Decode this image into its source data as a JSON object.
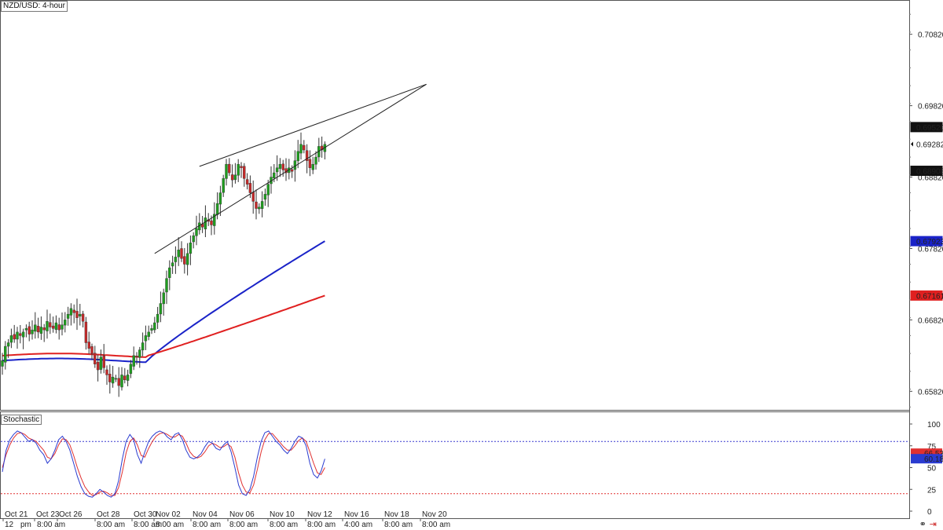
{
  "title": "NZD/USD: 4-hour",
  "stoch_label": "Stochastic",
  "colors": {
    "bull": "#1e9e1e",
    "bear": "#c62828",
    "ma_fast": "#1a23c8",
    "ma_slow": "#e02020",
    "stoch_k": "#2a3bd0",
    "stoch_d": "#e03030",
    "level_hi": "#3a3ad0",
    "level_lo": "#e03030"
  },
  "chart_data": {
    "type": "candlestick",
    "symbol": "NZD/USD",
    "timeframe": "4-hour",
    "price_axis": {
      "ticks": [
        "0.70820",
        "0.69820",
        "0.68820",
        "0.67820",
        "0.66820",
        "0.65820"
      ],
      "range": [
        0.6556,
        0.713
      ]
    },
    "price_tags": [
      {
        "value": "0.69520",
        "style": "dark"
      },
      {
        "value": "0.69282",
        "style": "current"
      },
      {
        "value": "0.68908",
        "style": "dark"
      },
      {
        "value": "0.67923",
        "style": "blue"
      },
      {
        "value": "0.67161",
        "style": "red"
      }
    ],
    "time_axis": {
      "top_row": [
        "Oct 21",
        "Oct 23",
        "Oct 26",
        "Oct 28",
        "Oct 30",
        "Nov 02",
        "Nov 04",
        "Nov 06",
        "Nov 10",
        "Nov 12",
        "Nov 16",
        "Nov 18",
        "Nov 20"
      ],
      "bottom_row": [
        "12",
        "pm",
        "8:00 am",
        "8:00 am",
        "8:00 am",
        "8:00 am",
        "8:00 am",
        "8:00 am",
        "8:00 am",
        "8:00 am",
        "4:00 am",
        "8:00 am",
        "8:00 am"
      ]
    },
    "closes": [
      0.6625,
      0.6645,
      0.665,
      0.666,
      0.6655,
      0.6665,
      0.666,
      0.6665,
      0.667,
      0.6662,
      0.6668,
      0.6675,
      0.6665,
      0.6672,
      0.6668,
      0.668,
      0.6672,
      0.667,
      0.6678,
      0.6668,
      0.6675,
      0.6682,
      0.669,
      0.6698,
      0.6692,
      0.6685,
      0.669,
      0.668,
      0.665,
      0.6642,
      0.6635,
      0.662,
      0.6612,
      0.663,
      0.6615,
      0.6605,
      0.6595,
      0.6602,
      0.66,
      0.659,
      0.6605,
      0.6598,
      0.6605,
      0.662,
      0.6632,
      0.663,
      0.664,
      0.665,
      0.666,
      0.6665,
      0.667,
      0.6678,
      0.669,
      0.6705,
      0.672,
      0.674,
      0.6755,
      0.6762,
      0.677,
      0.678,
      0.6768,
      0.676,
      0.6775,
      0.679,
      0.68,
      0.681,
      0.6818,
      0.6812,
      0.6825,
      0.682,
      0.6815,
      0.683,
      0.6845,
      0.686,
      0.688,
      0.69,
      0.6888,
      0.6878,
      0.6885,
      0.69,
      0.6895,
      0.688,
      0.6872,
      0.686,
      0.6848,
      0.6838,
      0.684,
      0.6848,
      0.6858,
      0.6872,
      0.6882,
      0.6888,
      0.6895,
      0.69,
      0.6892,
      0.6888,
      0.6895,
      0.689,
      0.6905,
      0.6918,
      0.6928,
      0.692,
      0.6905,
      0.6895,
      0.69,
      0.691,
      0.6925,
      0.692,
      0.6928
    ],
    "ma_fast_end": 0.67923,
    "ma_slow_end": 0.67161,
    "wedge": {
      "upper": [
        {
          "i": 66,
          "p": 0.6897
        },
        {
          "i": 142,
          "p": 0.7012
        }
      ],
      "lower": [
        {
          "i": 51,
          "p": 0.6775
        },
        {
          "i": 142,
          "p": 0.7012
        }
      ]
    },
    "stochastic": {
      "levels": [
        80,
        20
      ],
      "axis_ticks": [
        "100",
        "75",
        "50",
        "25",
        "0"
      ],
      "k_last": "60.18",
      "d_last": "66.53",
      "k": [
        45,
        70,
        82,
        88,
        92,
        90,
        85,
        80,
        82,
        78,
        70,
        65,
        55,
        60,
        70,
        82,
        86,
        80,
        70,
        55,
        40,
        28,
        20,
        17,
        16,
        20,
        25,
        22,
        18,
        16,
        20,
        35,
        60,
        80,
        88,
        82,
        65,
        55,
        68,
        80,
        86,
        90,
        92,
        90,
        85,
        82,
        88,
        90,
        82,
        70,
        62,
        60,
        62,
        66,
        74,
        80,
        78,
        72,
        70,
        76,
        80,
        68,
        50,
        30,
        20,
        18,
        25,
        40,
        62,
        80,
        90,
        92,
        86,
        80,
        76,
        70,
        66,
        72,
        80,
        86,
        84,
        75,
        55,
        42,
        38,
        46,
        60
      ],
      "d": [
        50,
        65,
        76,
        84,
        89,
        90,
        88,
        84,
        82,
        80,
        75,
        70,
        62,
        60,
        66,
        76,
        83,
        82,
        76,
        64,
        50,
        38,
        28,
        22,
        18,
        19,
        22,
        23,
        21,
        18,
        18,
        27,
        45,
        67,
        80,
        84,
        76,
        64,
        62,
        72,
        80,
        86,
        89,
        90,
        88,
        85,
        85,
        88,
        86,
        78,
        68,
        63,
        61,
        63,
        68,
        75,
        78,
        76,
        73,
        74,
        77,
        74,
        62,
        44,
        30,
        22,
        21,
        30,
        48,
        68,
        82,
        89,
        89,
        84,
        79,
        74,
        70,
        70,
        75,
        81,
        84,
        80,
        68,
        55,
        44,
        42,
        50
      ]
    }
  }
}
